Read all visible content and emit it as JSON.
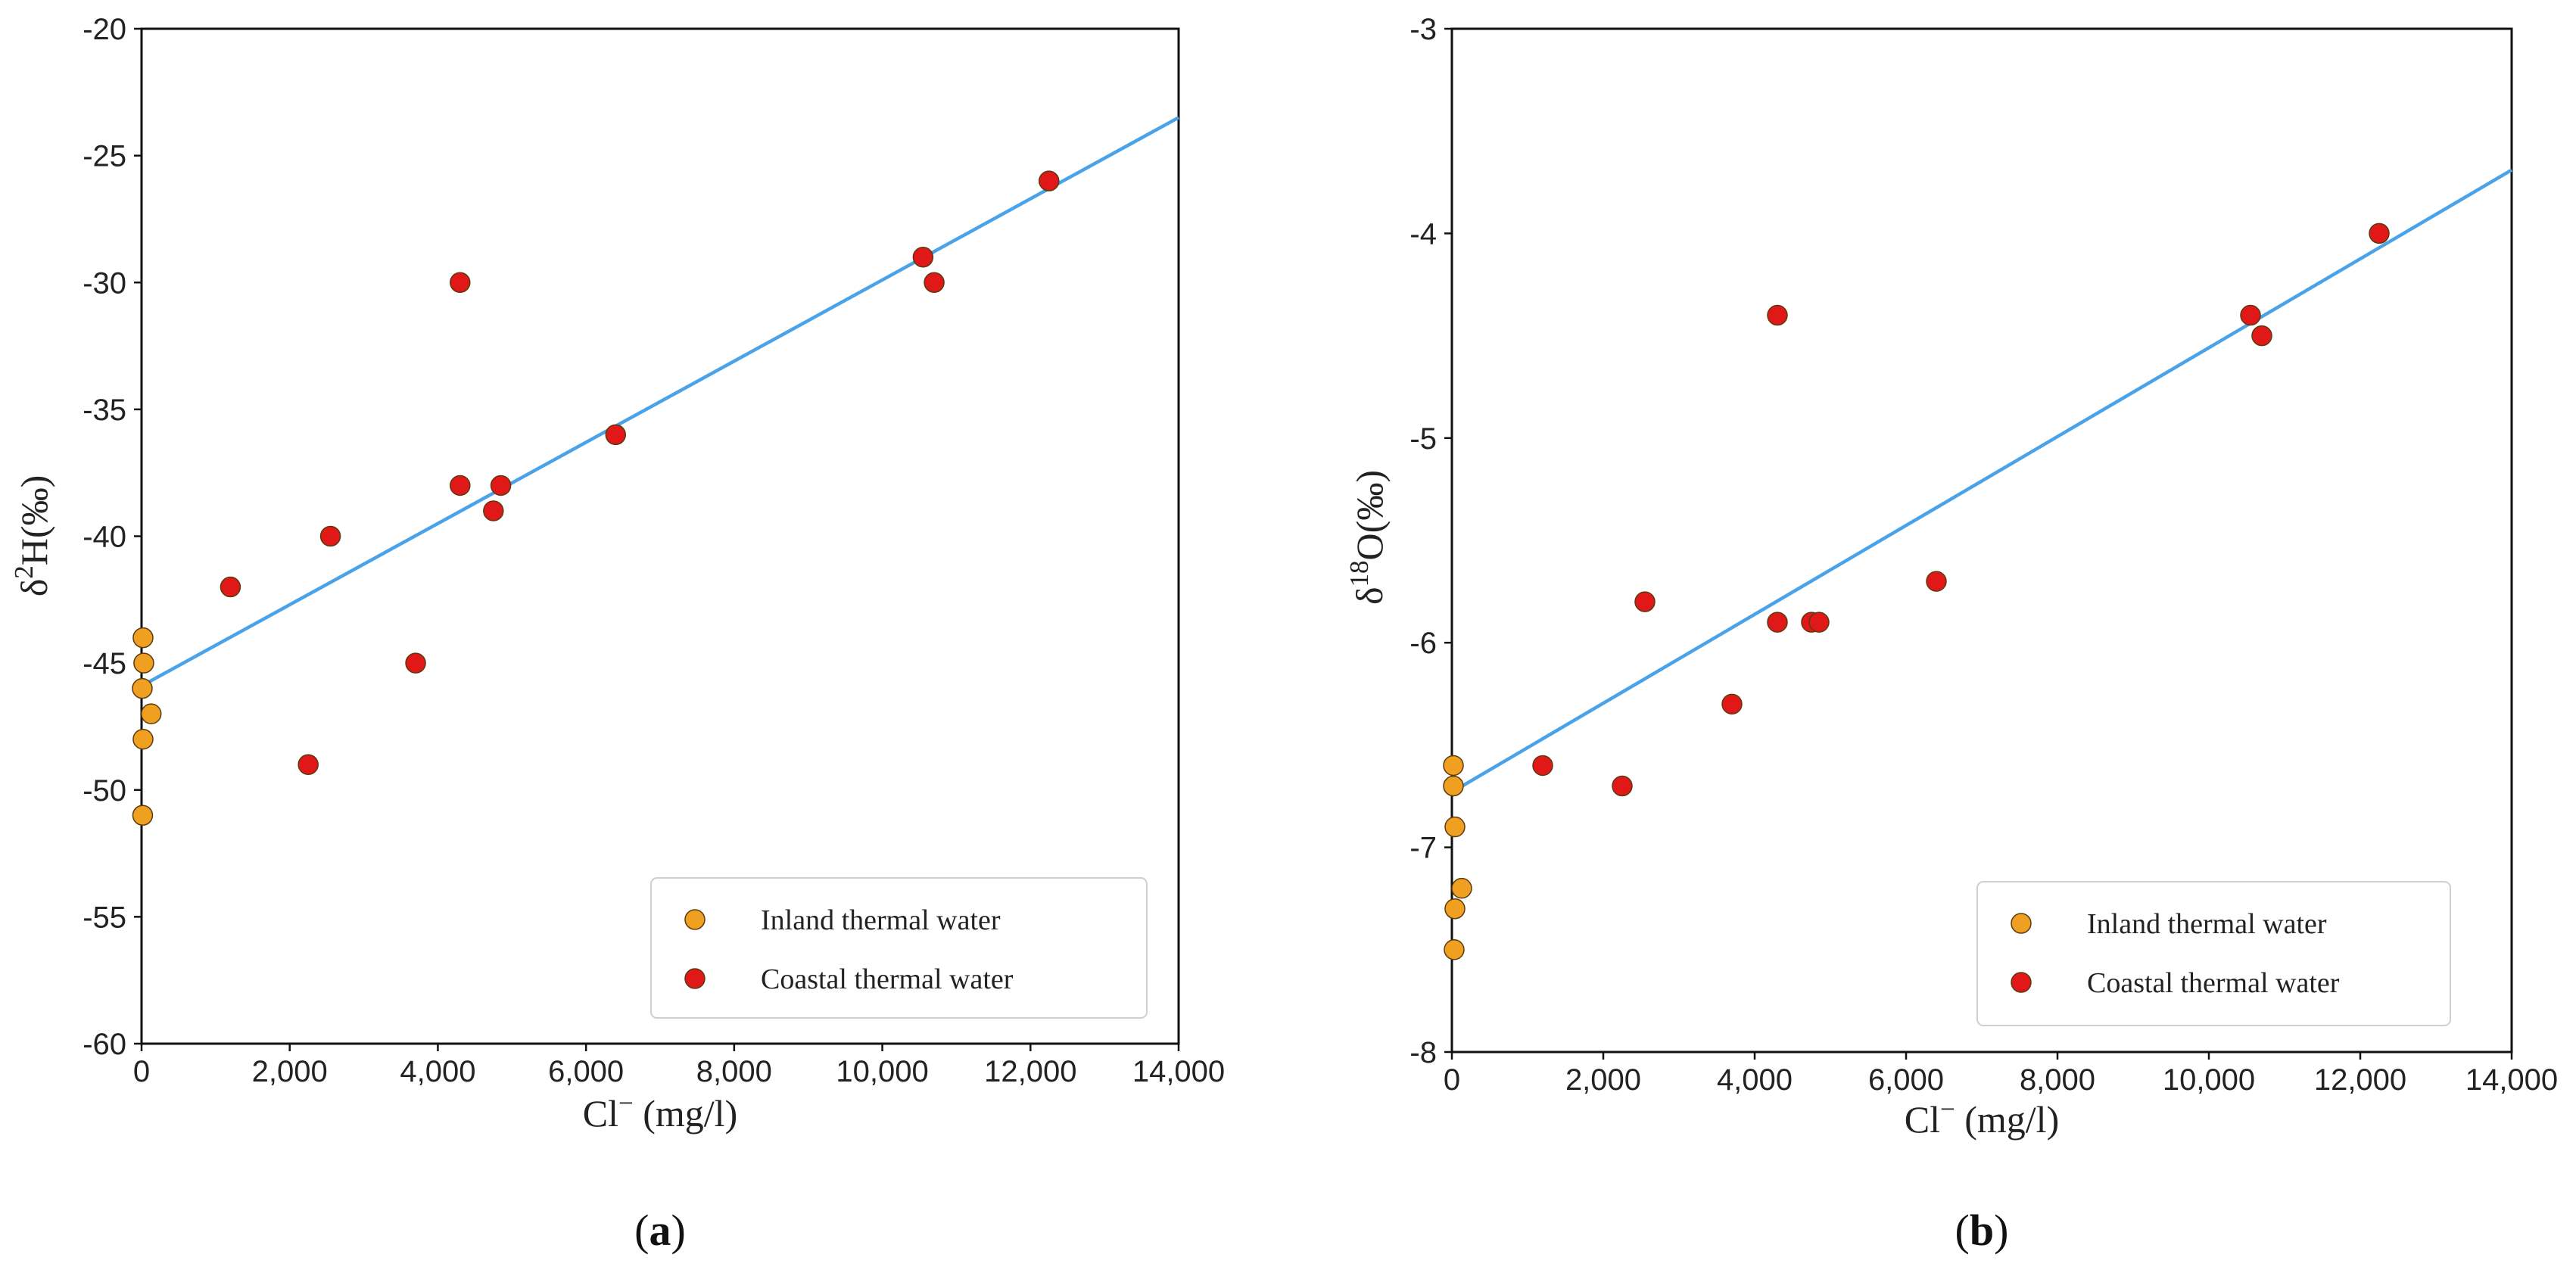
{
  "chart_data": [
    {
      "type": "scatter",
      "panel": "(a)",
      "panel_letter": "a",
      "xlabel": "Cl⁻ (mg/l)",
      "ylabel": "δ²H(‰)",
      "xlim": [
        0,
        14000
      ],
      "ylim": [
        -60,
        -20
      ],
      "xticks": [
        0,
        2000,
        4000,
        6000,
        8000,
        10000,
        12000,
        14000
      ],
      "xtick_labels": [
        "0",
        "2,000",
        "4,000",
        "6,000",
        "8,000",
        "10,000",
        "12,000",
        "14,000"
      ],
      "yticks": [
        -60,
        -55,
        -50,
        -45,
        -40,
        -35,
        -30,
        -25,
        -20
      ],
      "ytick_labels": [
        "-60",
        "-55",
        "-50",
        "-45",
        "-40",
        "-35",
        "-30",
        "-25",
        "-20"
      ],
      "legend_position": "lower-right",
      "series": [
        {
          "name": "Inland thermal water",
          "color": "#f0a020",
          "points": [
            [
              20,
              -44
            ],
            [
              30,
              -45
            ],
            [
              10,
              -46
            ],
            [
              130,
              -47
            ],
            [
              20,
              -48
            ],
            [
              15,
              -51
            ]
          ]
        },
        {
          "name": "Coastal thermal water",
          "color": "#e01818",
          "points": [
            [
              1200,
              -42
            ],
            [
              2250,
              -49
            ],
            [
              2550,
              -40
            ],
            [
              3700,
              -45
            ],
            [
              4300,
              -30
            ],
            [
              4300,
              -38
            ],
            [
              4750,
              -39
            ],
            [
              4850,
              -38
            ],
            [
              6400,
              -36
            ],
            [
              10550,
              -29
            ],
            [
              10700,
              -30
            ],
            [
              12250,
              -26
            ]
          ]
        }
      ],
      "fit_line": {
        "color": "#4aa3e8",
        "x": [
          0,
          14000
        ],
        "y": [
          -45.9,
          -23.5
        ]
      }
    },
    {
      "type": "scatter",
      "panel": "(b)",
      "panel_letter": "b",
      "xlabel": "Cl⁻ (mg/l)",
      "ylabel": "δ¹⁸O(‰)",
      "xlim": [
        0,
        14000
      ],
      "ylim": [
        -8,
        -3
      ],
      "xticks": [
        0,
        2000,
        4000,
        6000,
        8000,
        10000,
        12000,
        14000
      ],
      "xtick_labels": [
        "0",
        "2,000",
        "4,000",
        "6,000",
        "8,000",
        "10,000",
        "12,000",
        "14,000"
      ],
      "yticks": [
        -8,
        -7,
        -6,
        -5,
        -4,
        -3
      ],
      "ytick_labels": [
        "-8",
        "-7",
        "-6",
        "-5",
        "-4",
        "-3"
      ],
      "legend_position": "lower-right",
      "series": [
        {
          "name": "Inland thermal water",
          "color": "#f0a020",
          "points": [
            [
              20,
              -6.6
            ],
            [
              20,
              -6.7
            ],
            [
              40,
              -6.9
            ],
            [
              130,
              -7.2
            ],
            [
              40,
              -7.3
            ],
            [
              30,
              -7.5
            ]
          ]
        },
        {
          "name": "Coastal thermal water",
          "color": "#e01818",
          "points": [
            [
              1200,
              -6.6
            ],
            [
              2250,
              -6.7
            ],
            [
              2550,
              -5.8
            ],
            [
              3700,
              -6.3
            ],
            [
              4300,
              -4.4
            ],
            [
              4300,
              -5.9
            ],
            [
              4750,
              -5.9
            ],
            [
              4850,
              -5.9
            ],
            [
              6400,
              -5.7
            ],
            [
              10550,
              -4.4
            ],
            [
              10700,
              -4.5
            ],
            [
              12250,
              -4.0
            ]
          ]
        }
      ],
      "fit_line": {
        "color": "#4aa3e8",
        "x": [
          0,
          14000
        ],
        "y": [
          -6.73,
          -3.69
        ]
      }
    }
  ]
}
